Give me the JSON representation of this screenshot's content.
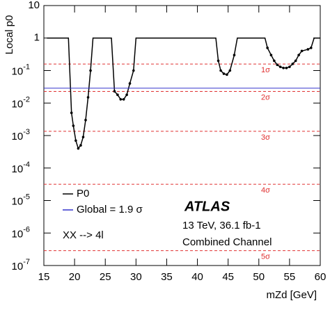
{
  "chart_data": {
    "type": "line",
    "xlabel": "mZd [GeV]",
    "ylabel": "Local p0",
    "xlim": [
      15,
      60
    ],
    "xticks": [
      15,
      20,
      25,
      30,
      35,
      40,
      45,
      50,
      55,
      60
    ],
    "ylim": [
      1e-07,
      10
    ],
    "log_y": true,
    "yticks": [
      {
        "value": 1e-07,
        "label": "10-7"
      },
      {
        "value": 1e-06,
        "label": "10-6"
      },
      {
        "value": 1e-05,
        "label": "10-5"
      },
      {
        "value": 0.0001,
        "label": "10-4"
      },
      {
        "value": 0.001,
        "label": "10-3"
      },
      {
        "value": 0.01,
        "label": "10-2"
      },
      {
        "value": 0.1,
        "label": "10-1"
      },
      1,
      10
    ],
    "series": [
      {
        "name": "P0",
        "color": "#000000",
        "x": [
          15.5,
          19,
          19.5,
          19.8,
          20.2,
          20.6,
          21,
          21.4,
          21.8,
          22.2,
          22.6,
          23,
          26,
          26.5,
          27,
          27.5,
          28,
          28.5,
          29,
          29.6,
          30,
          43,
          43.4,
          43.8,
          44.3,
          44.8,
          45.3,
          46,
          46.5,
          51,
          51.4,
          52,
          52.5,
          53,
          53.5,
          54,
          54.5,
          55,
          55.5,
          56,
          56.5,
          57,
          58,
          58.5,
          59,
          60
        ],
        "values": [
          1,
          1,
          0.005,
          0.002,
          0.0007,
          0.0004,
          0.0005,
          0.0009,
          0.003,
          0.015,
          0.1,
          1,
          1,
          0.023,
          0.018,
          0.013,
          0.013,
          0.018,
          0.04,
          0.1,
          1,
          1,
          0.2,
          0.1,
          0.08,
          0.075,
          0.1,
          0.3,
          1,
          1,
          0.5,
          0.3,
          0.2,
          0.15,
          0.13,
          0.12,
          0.12,
          0.13,
          0.16,
          0.2,
          0.3,
          0.4,
          0.45,
          0.5,
          1,
          1
        ]
      },
      {
        "name": "Global = 1.9 σ",
        "color": "#3333cc",
        "hline": 0.0287
      }
    ],
    "reference_lines": [
      {
        "value": 0.1587,
        "label": "1σ"
      },
      {
        "value": 0.02275,
        "label": "2σ"
      },
      {
        "value": 0.00135,
        "label": "3σ"
      },
      {
        "value": 3.17e-05,
        "label": "4σ"
      },
      {
        "value": 2.87e-07,
        "label": "5σ"
      }
    ],
    "reference_color": "#e03030",
    "annotations": [
      "ATLAS",
      "13 TeV, 36.1 fb-1",
      "Combined Channel",
      "XX --> 4l"
    ]
  }
}
